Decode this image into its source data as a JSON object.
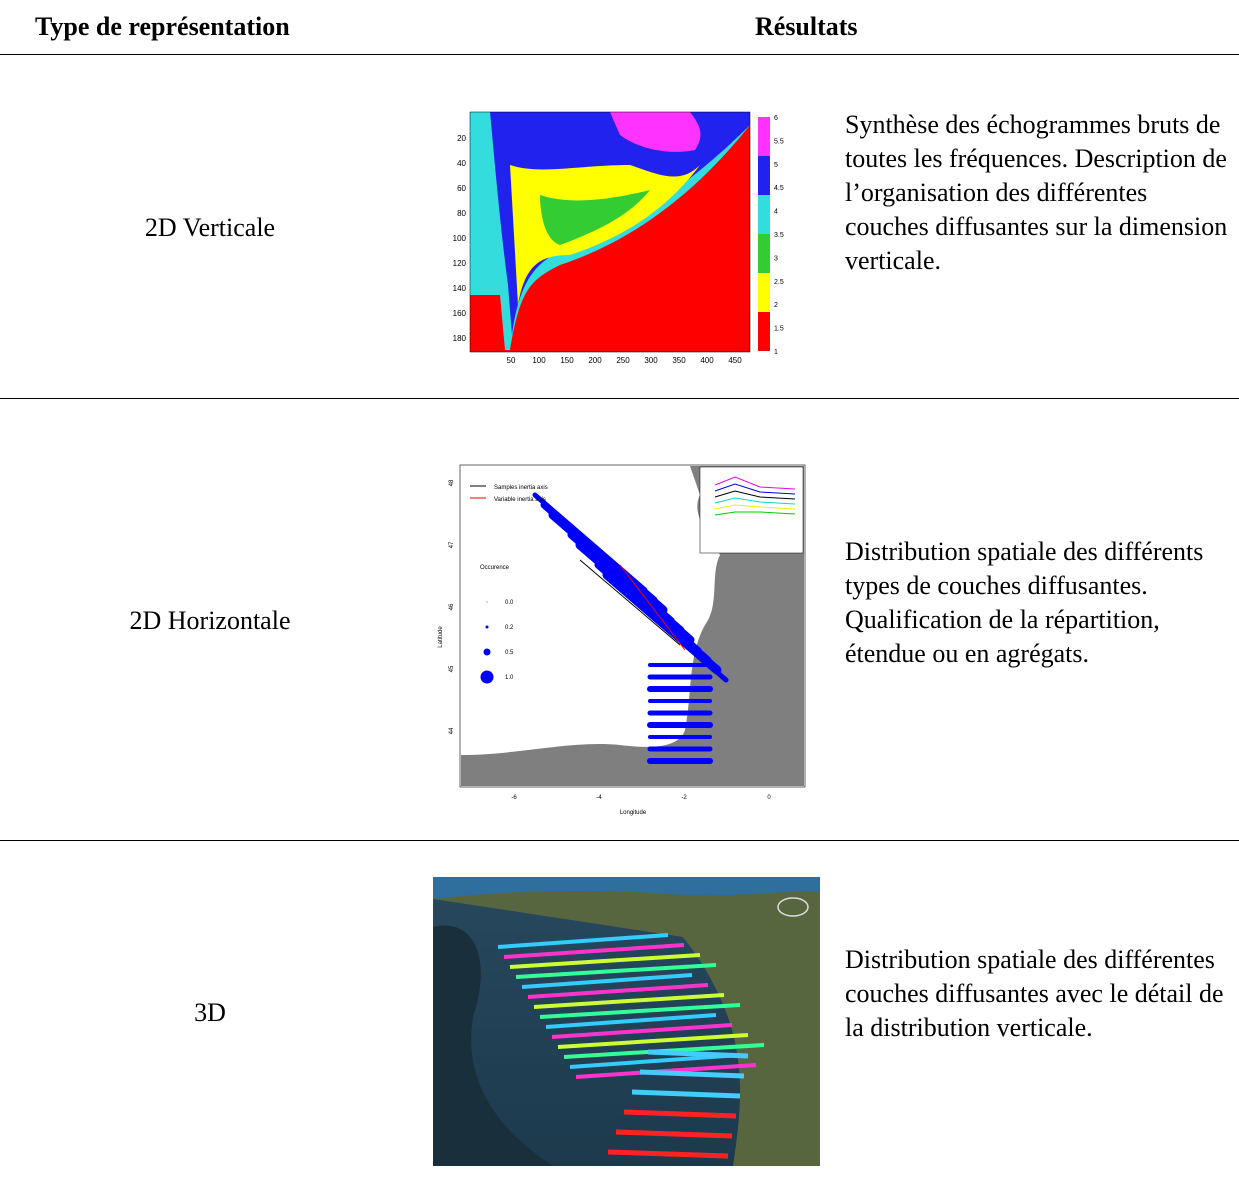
{
  "header": {
    "col1": "Type de représentation",
    "col2": "Résultats"
  },
  "rows": [
    {
      "type": "2D Verticale",
      "description": "Synthèse des échogrammes bruts de toutes les fréquences. Description de l’organisation des différentes couches diffusantes sur la dimension verticale."
    },
    {
      "type": "2D Horizontale",
      "description": "Distribution spatiale des différents types de couches diffusantes. Qualification de la répartition, étendue ou en agrégats."
    },
    {
      "type": "3D",
      "description": "Distribution spatiale des différentes couches diffusantes avec le détail de la distribution verticale."
    }
  ],
  "figures": {
    "vertical": {
      "yticks": [
        20,
        40,
        60,
        80,
        100,
        120,
        140,
        160,
        180
      ],
      "xticks": [
        50,
        100,
        150,
        200,
        250,
        300,
        350,
        400,
        450
      ],
      "colorbar": [
        6,
        5.5,
        5,
        4.5,
        4,
        3.5,
        3,
        2.5,
        2,
        1.5,
        1
      ]
    },
    "horizontal": {
      "legend": [
        "Samples inertia axis",
        "Variable inertia axis"
      ],
      "size_title": "Occurence",
      "sizes": [
        "0.0",
        "0.2",
        "0.5",
        "1.0"
      ],
      "yticks": [
        48,
        47,
        46,
        45,
        44
      ],
      "xticks": [
        -6,
        -4,
        -2,
        0
      ],
      "xlabel": "Longitude",
      "ylabel": "Latitude"
    }
  }
}
